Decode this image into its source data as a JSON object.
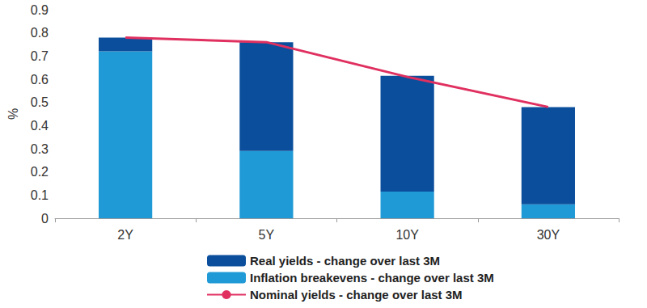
{
  "chart_data": {
    "type": "bar",
    "stacked": true,
    "grid": false,
    "legend": "bottom",
    "y_label": "%",
    "categories": [
      "2Y",
      "5Y",
      "10Y",
      "30Y"
    ],
    "ylim": [
      0,
      0.9
    ],
    "yticks": [
      0,
      0.1,
      0.2,
      0.3,
      0.4,
      0.5,
      0.6,
      0.7,
      0.8,
      0.9
    ],
    "series": [
      {
        "name": "Real yields - change over last 3M",
        "type": "bar",
        "color": "#0b4f9c",
        "values": [
          0.06,
          0.47,
          0.5,
          0.42
        ]
      },
      {
        "name": "Inflation breakevens - change over last 3M",
        "type": "bar",
        "color": "#1f9ad6",
        "values": [
          0.72,
          0.29,
          0.115,
          0.06
        ]
      },
      {
        "name": "Nominal yields - change over last 3M",
        "type": "line",
        "color": "#e03060",
        "values": [
          0.78,
          0.76,
          0.61,
          0.48
        ]
      }
    ]
  }
}
